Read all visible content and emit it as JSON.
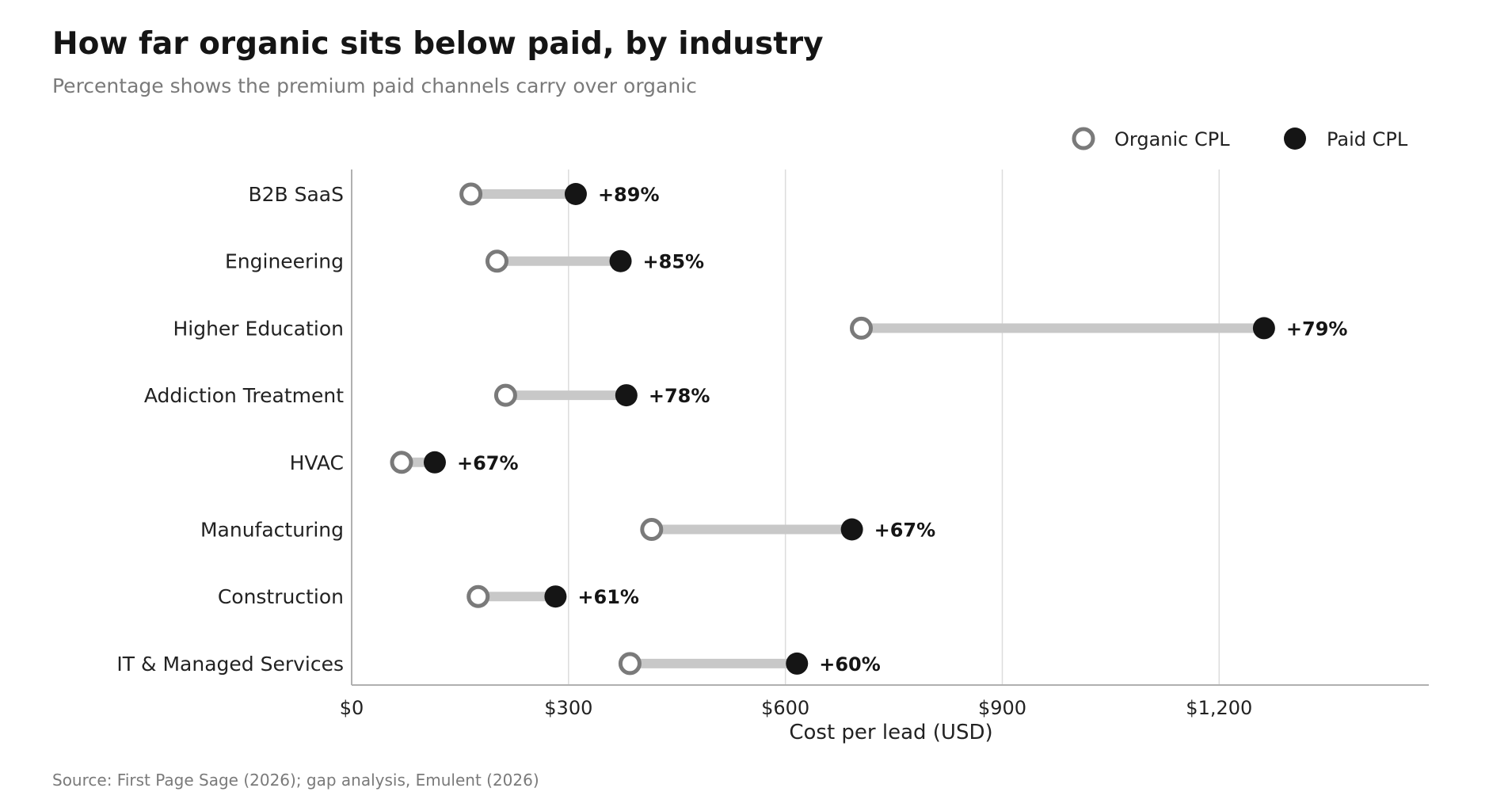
{
  "chart_data": {
    "type": "dumbbell",
    "title": "How far organic sits below paid, by industry",
    "subtitle": "Percentage shows the premium paid channels carry over organic",
    "source": "Source: First Page Sage (2026); gap analysis, Emulent (2026)",
    "xlabel": "Cost per lead (USD)",
    "ylabel": "",
    "xlim": [
      0,
      1490
    ],
    "x_ticks": [
      0,
      300,
      600,
      900,
      1200
    ],
    "x_tick_labels": [
      "$0",
      "$300",
      "$600",
      "$900",
      "$1,200"
    ],
    "grid": "vertical",
    "legend_placement": "top-right",
    "categories": [
      "B2B SaaS",
      "Engineering",
      "Higher Education",
      "Addiction Treatment",
      "HVAC",
      "Manufacturing",
      "Construction",
      "IT & Managed Services"
    ],
    "series": [
      {
        "name": "Organic CPL",
        "values": [
          165,
          201,
          705,
          213,
          69,
          415,
          175,
          385
        ]
      },
      {
        "name": "Paid CPL",
        "values": [
          310,
          372,
          1262,
          380,
          115,
          692,
          282,
          616
        ]
      }
    ],
    "labels": [
      "+89%",
      "+85%",
      "+79%",
      "+78%",
      "+67%",
      "+67%",
      "+61%",
      "+60%"
    ],
    "colors": {
      "organic_stroke": "#7a7a7a",
      "organic_fill": "#ffffff",
      "paid": "#151515",
      "connector": "#c8c8c8",
      "grid": "#dcdcdc",
      "axis": "#b0b0b0"
    }
  }
}
